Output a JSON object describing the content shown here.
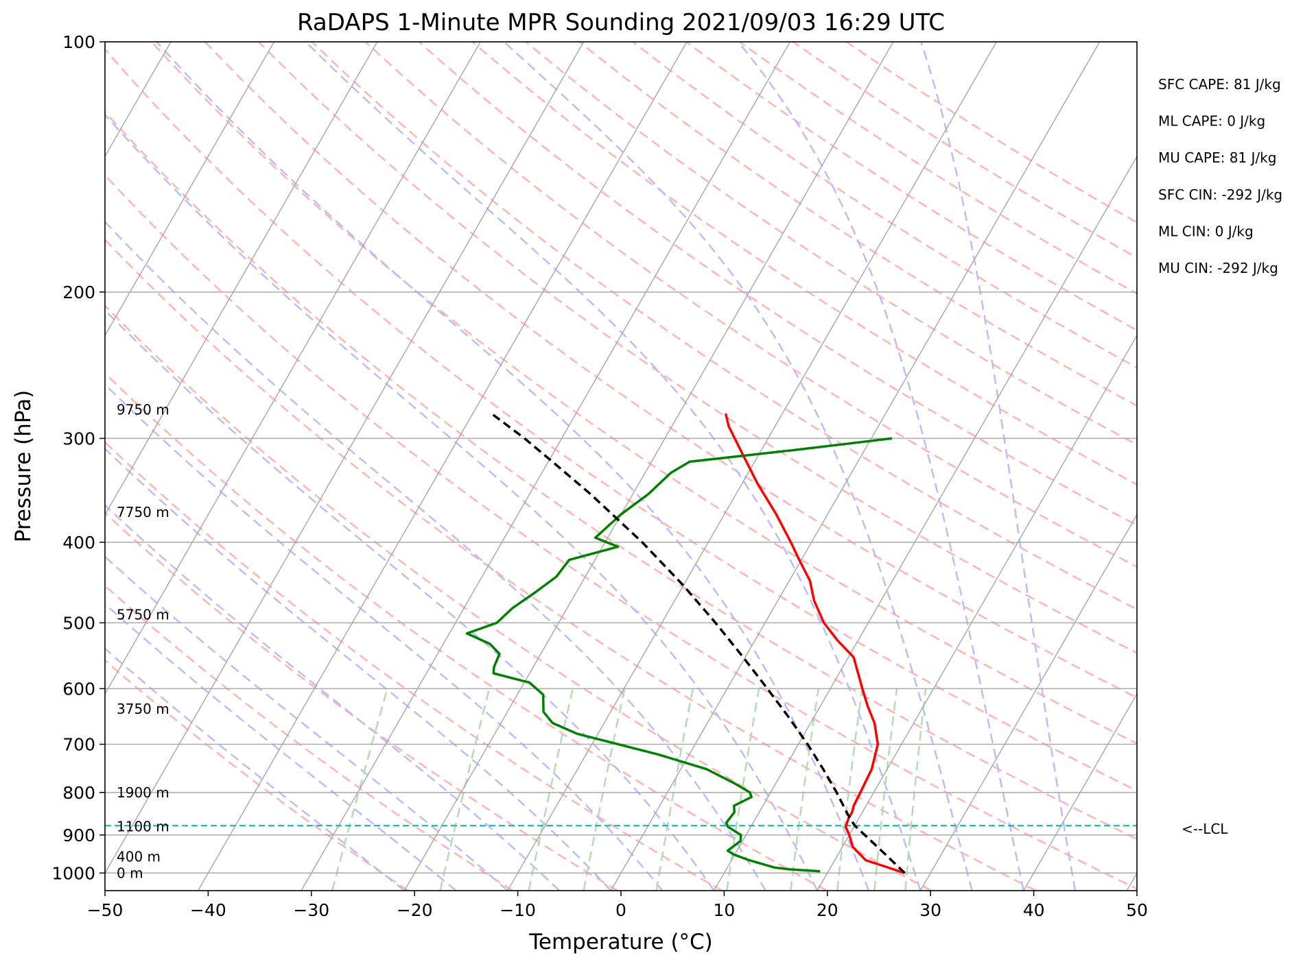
{
  "chart_data": {
    "type": "skew-t",
    "title": "RaDAPS 1-Minute MPR Sounding 2021/09/03 16:29 UTC",
    "xlabel": "Temperature (°C)",
    "ylabel": "Pressure (hPa)",
    "xlim": [
      -50,
      50
    ],
    "ylim": [
      1050,
      100
    ],
    "y_scale": "log",
    "x_ticks": [
      -50,
      -40,
      -30,
      -20,
      -10,
      0,
      10,
      20,
      30,
      40,
      50
    ],
    "x_tick_labels": [
      "−50",
      "−40",
      "−30",
      "−20",
      "−10",
      "0",
      "10",
      "20",
      "30",
      "40",
      "50"
    ],
    "y_ticks": [
      1000,
      900,
      800,
      700,
      600,
      500,
      400,
      300,
      200,
      100
    ],
    "y_tick_labels": [
      "1000",
      "900",
      "800",
      "700",
      "600",
      "500",
      "400",
      "300",
      "200",
      "100"
    ],
    "grid": true,
    "colors": {
      "temperature": "#ff0000",
      "dewpoint": "#008000",
      "parcel": "#000000",
      "lcl": "#00bfbf",
      "isotherm": "#aaaaaa",
      "dry_adiabat": "#ffb3b3",
      "moist_adiabat": "#bbbbff",
      "mixing_ratio": "#b3dcb3"
    },
    "series": [
      {
        "key": "temperature",
        "points": [
          [
            1000,
            27.5
          ],
          [
            985,
            25.6
          ],
          [
            965,
            23.0
          ],
          [
            930,
            21.0
          ],
          [
            900,
            20.0
          ],
          [
            880,
            19.2
          ],
          [
            860,
            19.0
          ],
          [
            845,
            19.0
          ],
          [
            830,
            18.8
          ],
          [
            800,
            18.7
          ],
          [
            750,
            18.5
          ],
          [
            700,
            17.7
          ],
          [
            660,
            16.2
          ],
          [
            630,
            14.6
          ],
          [
            600,
            13.1
          ],
          [
            550,
            10.5
          ],
          [
            525,
            8.0
          ],
          [
            500,
            5.7
          ],
          [
            470,
            3.5
          ],
          [
            445,
            2.0
          ],
          [
            420,
            -0.2
          ],
          [
            400,
            -2.0
          ],
          [
            370,
            -5.0
          ],
          [
            340,
            -8.5
          ],
          [
            310,
            -12.0
          ],
          [
            290,
            -14.5
          ],
          [
            280,
            -15.5
          ]
        ]
      },
      {
        "key": "dewpoint",
        "points": [
          [
            995,
            19.2
          ],
          [
            990,
            16.2
          ],
          [
            985,
            14.6
          ],
          [
            965,
            11.7
          ],
          [
            950,
            9.9
          ],
          [
            940,
            9.1
          ],
          [
            915,
            9.8
          ],
          [
            900,
            9.5
          ],
          [
            880,
            7.8
          ],
          [
            870,
            7.4
          ],
          [
            845,
            7.6
          ],
          [
            830,
            7.2
          ],
          [
            810,
            8.4
          ],
          [
            800,
            8.0
          ],
          [
            780,
            6.0
          ],
          [
            750,
            2.5
          ],
          [
            720,
            -3.0
          ],
          [
            680,
            -12.0
          ],
          [
            660,
            -15.0
          ],
          [
            640,
            -16.5
          ],
          [
            610,
            -17.5
          ],
          [
            590,
            -19.5
          ],
          [
            575,
            -23.5
          ],
          [
            565,
            -23.8
          ],
          [
            545,
            -24.0
          ],
          [
            530,
            -25.5
          ],
          [
            515,
            -28.3
          ],
          [
            500,
            -26.0
          ],
          [
            480,
            -25.3
          ],
          [
            460,
            -24.0
          ],
          [
            440,
            -22.8
          ],
          [
            420,
            -22.5
          ],
          [
            405,
            -18.5
          ],
          [
            395,
            -21.2
          ],
          [
            370,
            -20.0
          ],
          [
            350,
            -18.5
          ],
          [
            330,
            -17.5
          ],
          [
            320,
            -16.3
          ],
          [
            310,
            -7.0
          ],
          [
            300,
            2.0
          ]
        ]
      },
      {
        "key": "parcel",
        "points": [
          [
            1000,
            27.5
          ],
          [
            950,
            24.6
          ],
          [
            900,
            21.5
          ],
          [
            877,
            20.0
          ],
          [
            850,
            18.7
          ],
          [
            800,
            16.4
          ],
          [
            750,
            13.8
          ],
          [
            700,
            10.9
          ],
          [
            650,
            7.6
          ],
          [
            600,
            3.9
          ],
          [
            550,
            -0.2
          ],
          [
            500,
            -4.8
          ],
          [
            450,
            -10.1
          ],
          [
            400,
            -16.4
          ],
          [
            350,
            -24.1
          ],
          [
            320,
            -29.6
          ],
          [
            300,
            -33.6
          ],
          [
            280,
            -38.2
          ]
        ]
      }
    ],
    "lcl_pressure": 877,
    "lcl_label": "<--LCL",
    "height_labels": [
      {
        "text": "9750 m",
        "pressure": 277
      },
      {
        "text": "7750 m",
        "pressure": 368
      },
      {
        "text": "5750 m",
        "pressure": 489
      },
      {
        "text": "3750 m",
        "pressure": 635
      },
      {
        "text": "1900 m",
        "pressure": 800
      },
      {
        "text": "1100 m",
        "pressure": 879
      },
      {
        "text": "400 m",
        "pressure": 956
      },
      {
        "text": "0 m",
        "pressure": 1000
      }
    ],
    "stats": [
      "SFC CAPE: 81 J/kg",
      "ML CAPE: 0 J/kg",
      "MU CAPE: 81 J/kg",
      "SFC CIN: -292 J/kg",
      "ML CIN: 0 J/kg",
      "MU CIN: -292 J/kg"
    ]
  }
}
